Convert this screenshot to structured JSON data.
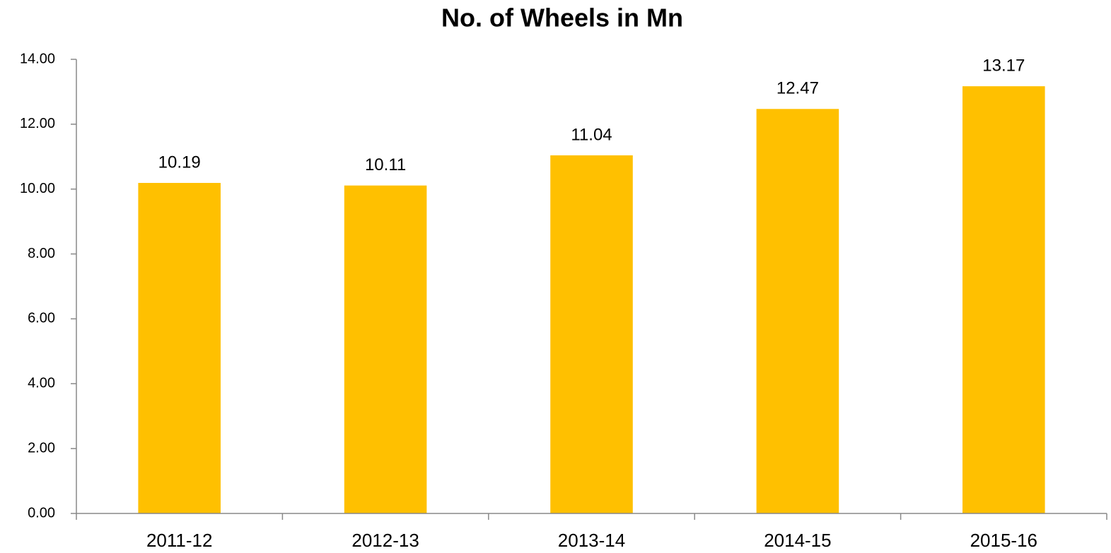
{
  "chart_data": {
    "type": "bar",
    "title": "No. of Wheels in Mn",
    "categories": [
      "2011-12",
      "2012-13",
      "2013-14",
      "2014-15",
      "2015-16"
    ],
    "values": [
      10.19,
      10.11,
      11.04,
      12.47,
      13.17
    ],
    "color": "#ffc000",
    "ylim": [
      0,
      14
    ],
    "yticks": [
      {
        "value": 0,
        "label": "0.00"
      },
      {
        "value": 2,
        "label": "2.00"
      },
      {
        "value": 4,
        "label": "4.00"
      },
      {
        "value": 6,
        "label": "6.00"
      },
      {
        "value": 8,
        "label": "8.00"
      },
      {
        "value": 10,
        "label": "10.00"
      },
      {
        "value": 12,
        "label": "12.00"
      },
      {
        "value": 14,
        "label": "14.00"
      }
    ],
    "grid": false
  }
}
